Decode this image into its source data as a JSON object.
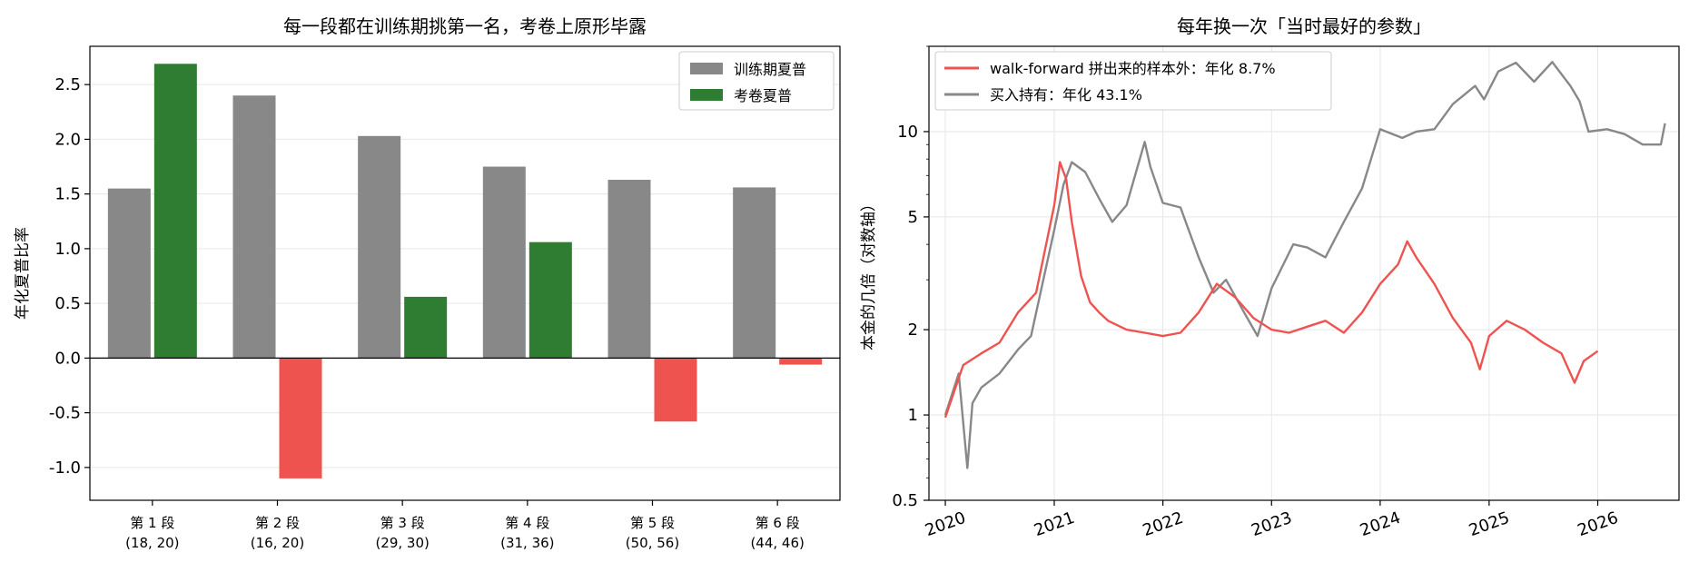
{
  "chart_data": [
    {
      "type": "bar",
      "title": "每一段都在训练期挑第一名，考卷上原形毕露",
      "xlabel": "",
      "ylabel": "年化夏普比率",
      "ylim": [
        -1.3,
        2.85
      ],
      "yticks": [
        "-1.0",
        "-0.5",
        "0.0",
        "0.5",
        "1.0",
        "1.5",
        "2.0",
        "2.5"
      ],
      "yticks_values": [
        -1.0,
        -0.5,
        0.0,
        0.5,
        1.0,
        1.5,
        2.0,
        2.5
      ],
      "categories": [
        "第 1 段",
        "第 2 段",
        "第 3 段",
        "第 4 段",
        "第 5 段",
        "第 6 段"
      ],
      "category_params": [
        "(18, 20)",
        "(16, 20)",
        "(29, 30)",
        "(31, 36)",
        "(50, 56)",
        "(44, 46)"
      ],
      "series": [
        {
          "name": "训练期夏普",
          "values": [
            1.55,
            2.4,
            2.03,
            1.75,
            1.63,
            1.56
          ]
        },
        {
          "name": "考卷夏普",
          "values": [
            2.69,
            -1.1,
            0.56,
            1.06,
            -0.58,
            -0.06
          ]
        }
      ],
      "legend_position": "top-right",
      "grid": true
    },
    {
      "type": "line",
      "title": "每年换一次「当时最好的参数」",
      "xlabel": "",
      "ylabel": "本金的几倍（对数轴）",
      "yscale": "log",
      "ylim": [
        0.5,
        20
      ],
      "yticks": [
        "0.5",
        "1",
        "2",
        "5",
        "10"
      ],
      "yticks_values": [
        0.5,
        1,
        2,
        5,
        10
      ],
      "xlim": [
        "2019-11-07",
        "2026-10-01"
      ],
      "xticks": [
        "2020",
        "2021",
        "2022",
        "2023",
        "2024",
        "2025",
        "2026"
      ],
      "series": [
        {
          "name": "walk-forward 拼出来的样本外：年化 8.7%",
          "x": [
            "2020-01-01",
            "2020-03-01",
            "2020-05-01",
            "2020-07-01",
            "2020-09-01",
            "2020-11-01",
            "2021-01-01",
            "2021-01-20",
            "2021-02-10",
            "2021-03-01",
            "2021-04-01",
            "2021-05-01",
            "2021-06-01",
            "2021-07-01",
            "2021-09-01",
            "2021-11-01",
            "2022-01-01",
            "2022-03-01",
            "2022-05-01",
            "2022-07-01",
            "2022-09-01",
            "2022-11-01",
            "2023-01-01",
            "2023-03-01",
            "2023-05-01",
            "2023-07-01",
            "2023-09-01",
            "2023-11-01",
            "2024-01-01",
            "2024-03-01",
            "2024-04-01",
            "2024-05-01",
            "2024-07-01",
            "2024-09-01",
            "2024-11-01",
            "2024-12-01",
            "2025-01-01",
            "2025-03-01",
            "2025-05-01",
            "2025-07-01",
            "2025-09-01",
            "2025-10-15",
            "2025-11-15",
            "2026-01-01"
          ],
          "values": [
            0.98,
            1.5,
            1.65,
            1.8,
            2.3,
            2.7,
            5.5,
            7.8,
            6.8,
            4.8,
            3.1,
            2.5,
            2.3,
            2.15,
            2.0,
            1.95,
            1.9,
            1.95,
            2.3,
            2.9,
            2.6,
            2.2,
            2.0,
            1.95,
            2.05,
            2.15,
            1.95,
            2.3,
            2.9,
            3.4,
            4.1,
            3.6,
            2.9,
            2.2,
            1.8,
            1.45,
            1.9,
            2.15,
            2.0,
            1.8,
            1.65,
            1.3,
            1.55,
            1.68
          ]
        },
        {
          "name": "买入持有：年化 43.1%",
          "x": [
            "2020-01-01",
            "2020-02-15",
            "2020-03-15",
            "2020-04-01",
            "2020-05-01",
            "2020-07-01",
            "2020-09-01",
            "2020-10-15",
            "2021-01-01",
            "2021-02-01",
            "2021-03-01",
            "2021-04-15",
            "2021-06-01",
            "2021-07-15",
            "2021-09-01",
            "2021-11-01",
            "2021-11-20",
            "2022-01-01",
            "2022-03-01",
            "2022-05-01",
            "2022-06-20",
            "2022-08-01",
            "2022-10-01",
            "2022-11-15",
            "2023-01-01",
            "2023-03-15",
            "2023-05-01",
            "2023-07-01",
            "2023-09-01",
            "2023-11-01",
            "2024-01-01",
            "2024-03-15",
            "2024-05-01",
            "2024-07-01",
            "2024-09-01",
            "2024-11-15",
            "2024-12-15",
            "2025-02-01",
            "2025-04-01",
            "2025-06-01",
            "2025-08-01",
            "2025-10-01",
            "2025-11-01",
            "2025-12-01",
            "2026-02-01",
            "2026-04-01",
            "2026-06-01",
            "2026-08-01",
            "2026-08-15"
          ],
          "values": [
            1.0,
            1.4,
            0.65,
            1.1,
            1.25,
            1.4,
            1.7,
            1.9,
            4.5,
            6.5,
            7.8,
            7.2,
            5.8,
            4.8,
            5.5,
            9.2,
            7.5,
            5.6,
            5.4,
            3.6,
            2.7,
            3.0,
            2.3,
            1.9,
            2.8,
            4.0,
            3.9,
            3.6,
            4.8,
            6.3,
            10.2,
            9.5,
            10.0,
            10.2,
            12.5,
            14.5,
            13.0,
            16.3,
            17.5,
            15.0,
            17.6,
            14.5,
            12.8,
            10.0,
            10.2,
            9.8,
            9.0,
            9.0,
            10.7
          ]
        }
      ],
      "legend_position": "top-left",
      "grid": true
    }
  ]
}
